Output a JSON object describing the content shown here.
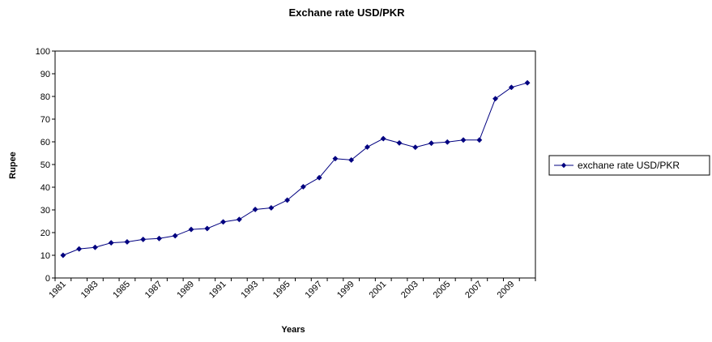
{
  "chart_data": {
    "type": "line",
    "title": "Exchane rate USD/PKR",
    "xlabel": "Years",
    "ylabel": "Rupee",
    "ylim": [
      0,
      100
    ],
    "yticks": [
      0,
      10,
      20,
      30,
      40,
      50,
      60,
      70,
      80,
      90,
      100
    ],
    "x": [
      1981,
      1982,
      1983,
      1984,
      1985,
      1986,
      1987,
      1988,
      1989,
      1990,
      1991,
      1992,
      1993,
      1994,
      1995,
      1996,
      1997,
      1998,
      1999,
      2000,
      2001,
      2002,
      2003,
      2004,
      2005,
      2006,
      2007,
      2008,
      2009,
      2010
    ],
    "xtick_labels": [
      "1981",
      "1983",
      "1985",
      "1987",
      "1989",
      "1991",
      "1993",
      "1995",
      "1997",
      "1999",
      "2001",
      "2003",
      "2005",
      "2007",
      "2009"
    ],
    "grid": false,
    "legend_position": "right",
    "series": [
      {
        "name": "exchane rate USD/PKR",
        "color": "#000080",
        "marker": "diamond",
        "values": [
          10.0,
          12.8,
          13.5,
          15.5,
          15.9,
          17.0,
          17.4,
          18.6,
          21.4,
          21.8,
          24.7,
          25.8,
          30.2,
          30.9,
          34.3,
          40.2,
          44.2,
          52.6,
          52.0,
          57.7,
          61.4,
          59.5,
          57.6,
          59.4,
          59.9,
          60.8,
          60.8,
          79.0,
          84.0,
          86.0
        ]
      }
    ]
  }
}
